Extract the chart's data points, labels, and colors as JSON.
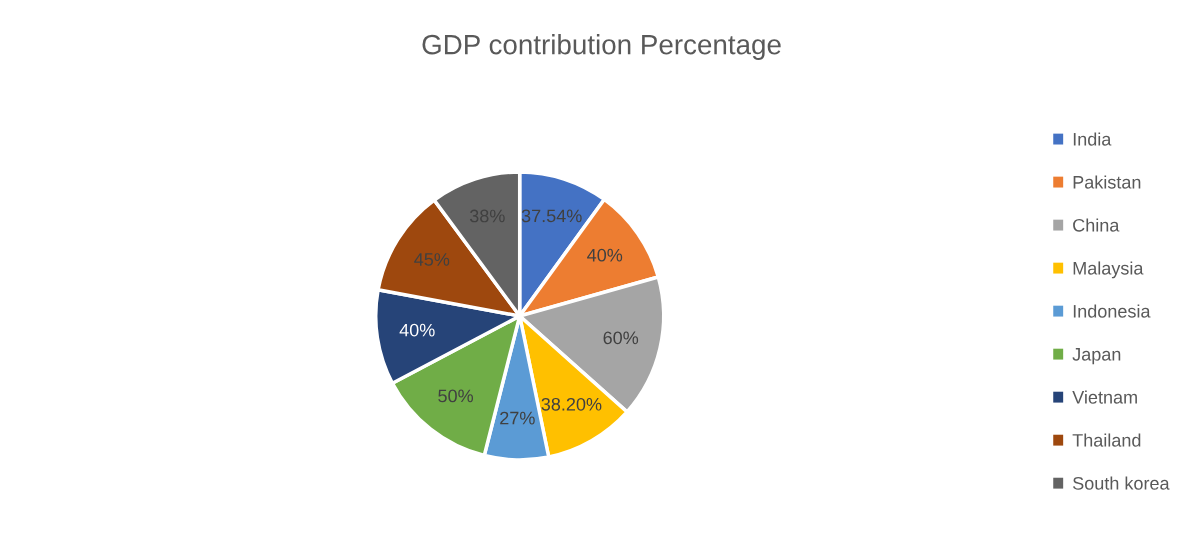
{
  "chart_data": {
    "type": "pie",
    "title": "GDP contribution Percentage",
    "categories": [
      "India",
      "Pakistan",
      "China",
      "Malaysia",
      "Indonesia",
      "Japan",
      "Vietnam",
      "Thailand",
      "South korea"
    ],
    "values": [
      37.54,
      40,
      60,
      38.2,
      27,
      50,
      40,
      45,
      38
    ],
    "value_labels": [
      "37.54%",
      "40%",
      "60%",
      "38.20%",
      "27%",
      "50%",
      "40%",
      "45%",
      "38%"
    ],
    "colors": [
      "#4472c4",
      "#ed7d31",
      "#a5a5a5",
      "#ffc000",
      "#5b9bd5",
      "#70ad47",
      "#264478",
      "#9e480e",
      "#636363"
    ],
    "legend": "right"
  }
}
